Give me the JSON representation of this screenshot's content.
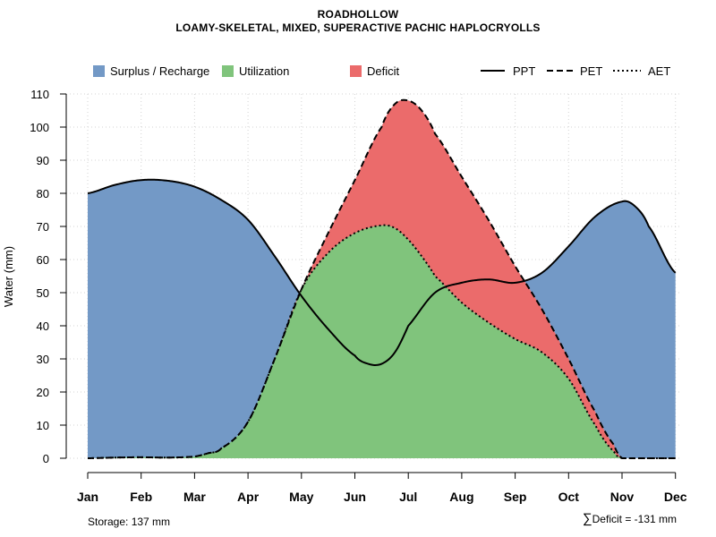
{
  "title": "ROADHOLLOW",
  "subtitle": "LOAMY-SKELETAL, MIXED, SUPERACTIVE PACHIC HAPLOCRYOLLS",
  "colors": {
    "surplus": "#7399C6",
    "utilization": "#80C47C",
    "deficit": "#EB6B6B",
    "line": "#000000",
    "grid": "#d3d3d3"
  },
  "legend": {
    "surplus": "Surplus / Recharge",
    "utilization": "Utilization",
    "deficit": "Deficit",
    "ppt": "PPT",
    "pet": "PET",
    "aet": "AET"
  },
  "footer": {
    "storage": "Storage: 137 mm",
    "deficit_symbol": "∑",
    "deficit": "Deficit = -131 mm"
  },
  "chart_data": {
    "type": "area",
    "ylabel": "Water (mm)",
    "xlabel": "",
    "ylim": [
      0,
      110
    ],
    "yticks": [
      0,
      10,
      20,
      30,
      40,
      50,
      60,
      70,
      80,
      90,
      100,
      110
    ],
    "grid": true,
    "legend_position": "top",
    "categories": [
      "Jan",
      "Feb",
      "Mar",
      "Apr",
      "May",
      "Jun",
      "Jul",
      "Aug",
      "Sep",
      "Oct",
      "Nov",
      "Dec"
    ],
    "series": [
      {
        "name": "PPT",
        "style": "solid",
        "x": [
          1,
          1.5,
          2,
          2.5,
          3,
          3.5,
          4,
          4.5,
          5,
          5.5,
          6,
          6.25,
          6.5,
          6.75,
          7,
          7.5,
          8,
          8.5,
          9,
          9.5,
          10,
          10.5,
          11,
          11.25,
          11.5,
          12
        ],
        "values": [
          80,
          82.5,
          84,
          83.8,
          82,
          78,
          72,
          61,
          49,
          39,
          31,
          28.5,
          28.5,
          32,
          40,
          50,
          53,
          54,
          53,
          56,
          64,
          73,
          77.5,
          76,
          70,
          56
        ]
      },
      {
        "name": "PET",
        "style": "dashed",
        "x": [
          1,
          1.5,
          2,
          2.5,
          3,
          3.25,
          3.5,
          4,
          4.5,
          5,
          5.5,
          6,
          6.5,
          6.75,
          7,
          7.25,
          7.5,
          8,
          8.5,
          9,
          9.5,
          10,
          10.5,
          10.85,
          11,
          11.5,
          12
        ],
        "values": [
          0,
          0.2,
          0.3,
          0.2,
          0.5,
          1.5,
          3,
          11,
          30,
          51,
          68,
          84,
          100,
          107,
          108,
          105,
          98,
          85,
          72,
          58,
          45,
          30,
          14,
          4,
          0,
          0,
          0
        ]
      },
      {
        "name": "AET",
        "style": "dotted",
        "x": [
          1,
          1.5,
          2,
          2.5,
          3,
          3.25,
          3.5,
          4,
          4.5,
          5,
          5.5,
          6,
          6.5,
          6.75,
          7,
          7.25,
          7.5,
          8,
          8.5,
          9,
          9.5,
          10,
          10.5,
          10.85,
          11,
          11.5,
          12
        ],
        "values": [
          0,
          0.2,
          0.3,
          0.2,
          0.5,
          1.5,
          3,
          11,
          30,
          51,
          62,
          68,
          70.3,
          69.5,
          66,
          61,
          55,
          47,
          41,
          36,
          32,
          24,
          10,
          2,
          0,
          0,
          0
        ]
      }
    ]
  }
}
